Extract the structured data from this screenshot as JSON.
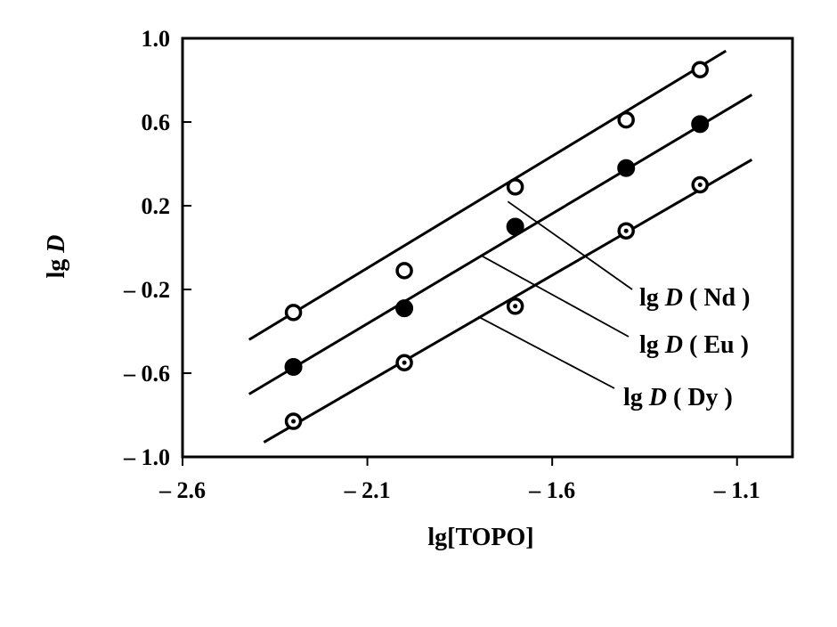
{
  "chart_data": {
    "type": "scatter",
    "xlabel": "lg[TOPO]",
    "ylabel_prefix": "lg ",
    "ylabel_var": "D",
    "xlim": [
      -2.6,
      -0.95
    ],
    "ylim": [
      -1.0,
      1.0
    ],
    "xticks": [
      -2.6,
      -2.1,
      -1.6,
      -1.1
    ],
    "xtick_labels": [
      "– 2.6",
      "– 2.1",
      "– 1.6",
      "– 1.1"
    ],
    "yticks": [
      -1.0,
      -0.6,
      -0.2,
      0.2,
      0.6,
      1.0
    ],
    "ytick_labels": [
      "– 1.0",
      "– 0.6",
      "– 0.2",
      "0.2",
      "0.6",
      "1.0"
    ],
    "grid": false,
    "series": [
      {
        "name": "lg D ( Nd )",
        "label_prefix": "lg ",
        "label_var": "D",
        "label_suffix": " ( Nd )",
        "marker": "open-circle",
        "x": [
          -2.3,
          -2.0,
          -1.7,
          -1.4,
          -1.2
        ],
        "y": [
          -0.31,
          -0.11,
          0.29,
          0.61,
          0.85
        ],
        "fit_x": [
          -2.42,
          -1.13
        ],
        "fit_y": [
          -0.44,
          0.94
        ]
      },
      {
        "name": "lg D ( Eu )",
        "label_prefix": "lg ",
        "label_var": "D",
        "label_suffix": " ( Eu )",
        "marker": "filled-circle",
        "x": [
          -2.3,
          -2.0,
          -1.7,
          -1.4,
          -1.2
        ],
        "y": [
          -0.57,
          -0.29,
          0.1,
          0.38,
          0.59
        ],
        "fit_x": [
          -2.42,
          -1.06
        ],
        "fit_y": [
          -0.7,
          0.73
        ]
      },
      {
        "name": "lg D ( Dy )",
        "label_prefix": "lg ",
        "label_var": "D",
        "label_suffix": " ( Dy )",
        "marker": "dotted-circle",
        "x": [
          -2.3,
          -2.0,
          -1.7,
          -1.4,
          -1.2
        ],
        "y": [
          -0.83,
          -0.55,
          -0.28,
          0.08,
          0.3
        ],
        "fit_x": [
          -2.38,
          -1.06
        ],
        "fit_y": [
          -0.93,
          0.42
        ]
      }
    ]
  }
}
